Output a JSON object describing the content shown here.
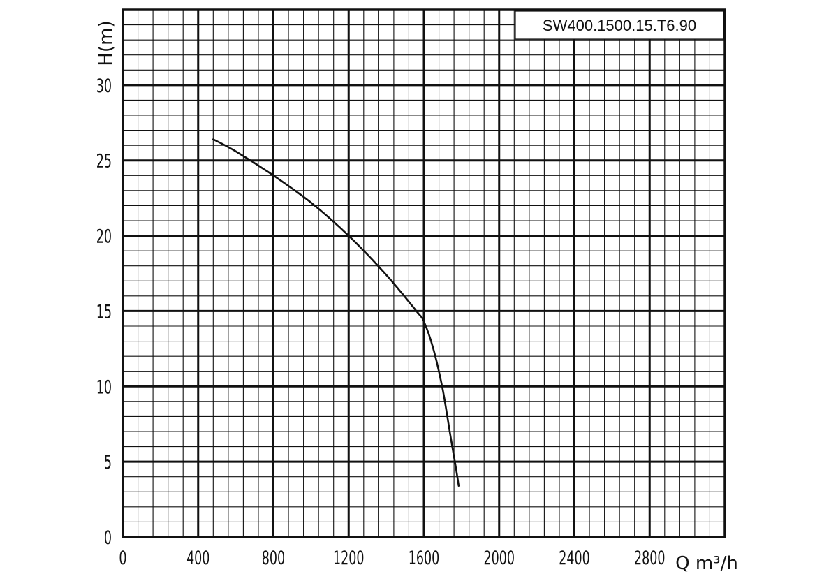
{
  "chart_data": {
    "type": "line",
    "model_label": "SW400.1500.15.T6.90",
    "xlabel": "Q m³/h",
    "ylabel": "H(m)",
    "xlim": [
      0,
      3200
    ],
    "ylim": [
      0,
      35
    ],
    "x_ticks": [
      "0",
      "400",
      "800",
      "1200",
      "1600",
      "2000",
      "2400",
      "2800"
    ],
    "y_ticks": [
      "0",
      "5",
      "10",
      "15",
      "20",
      "25",
      "30"
    ],
    "grid": true,
    "series": [
      {
        "points": [
          [
            480,
            26.4
          ],
          [
            600,
            25.6
          ],
          [
            800,
            24.0
          ],
          [
            1000,
            22.2
          ],
          [
            1200,
            20.0
          ],
          [
            1400,
            17.4
          ],
          [
            1560,
            15.0
          ],
          [
            1600,
            14.3
          ],
          [
            1650,
            12.5
          ],
          [
            1700,
            9.8
          ],
          [
            1740,
            6.8
          ],
          [
            1770,
            4.6
          ],
          [
            1785,
            3.4
          ]
        ]
      }
    ]
  }
}
